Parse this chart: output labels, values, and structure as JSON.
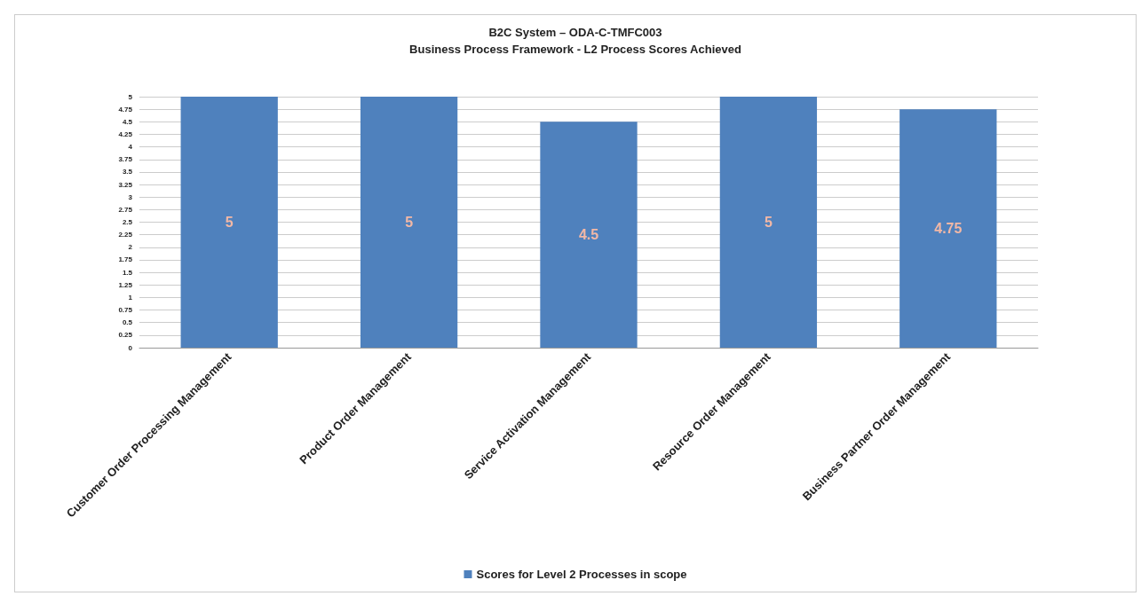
{
  "chart_data": {
    "type": "bar",
    "title": "B2C System – ODA-C-TMFC003",
    "subtitle": "Business Process Framework - L2 Process Scores Achieved",
    "categories": [
      "Customer Order Processing Management",
      "Product Order Management",
      "Service Activation Management",
      "Resource Order Management",
      "Business Partner Order Management"
    ],
    "series": [
      {
        "name": "Scores for Level 2 Processes in scope",
        "color": "#4f81bd",
        "values": [
          5,
          5,
          4.5,
          5,
          4.75
        ]
      }
    ],
    "ylim": [
      0,
      5
    ],
    "yticks": [
      0,
      0.25,
      0.5,
      0.75,
      1,
      1.25,
      1.5,
      1.75,
      2,
      2.25,
      2.5,
      2.75,
      3,
      3.25,
      3.5,
      3.75,
      4,
      4.25,
      4.5,
      4.75,
      5
    ],
    "grid": "y",
    "legend": "bottom",
    "data_labels": true
  }
}
